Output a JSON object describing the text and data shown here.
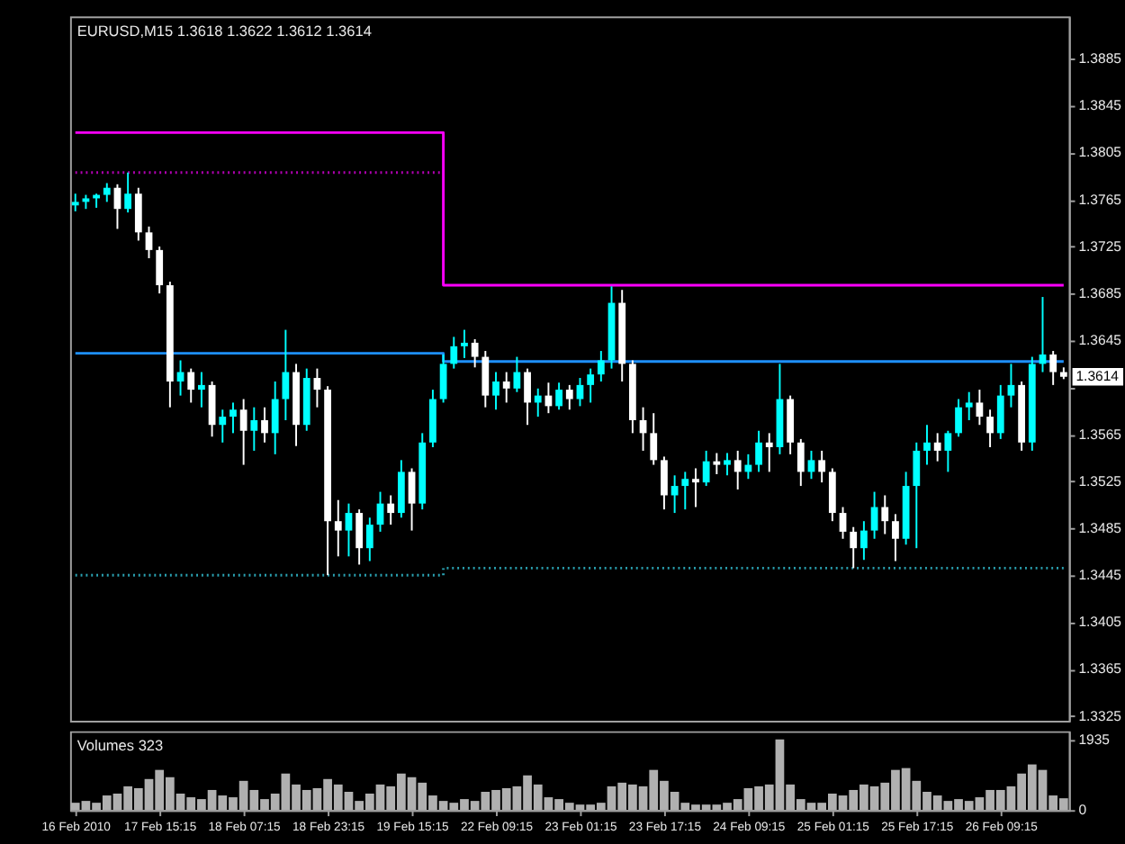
{
  "chart_data": [
    {
      "type": "candlestick",
      "title": "EURUSD,M15 1.3618 1.3622 1.3612 1.3614",
      "categories": [
        null,
        null,
        null,
        null,
        null,
        null,
        null,
        null,
        null,
        null,
        null,
        null,
        null,
        null,
        null,
        null,
        null,
        null,
        null,
        null,
        null,
        null,
        null,
        null,
        null,
        null,
        null,
        null,
        null,
        null,
        null,
        null,
        null,
        null,
        null,
        null,
        null,
        null,
        null,
        null,
        null,
        null,
        null,
        null,
        null,
        null,
        null,
        null,
        null,
        null,
        null,
        null,
        null,
        null,
        null,
        null,
        null,
        null,
        null,
        null,
        null,
        null,
        null,
        null,
        null,
        null,
        null,
        null,
        null,
        null,
        null,
        null,
        null,
        null,
        null,
        null,
        null,
        null,
        null,
        null,
        null,
        null,
        null,
        null,
        null,
        null,
        null,
        null,
        null,
        null,
        null,
        null,
        null,
        null,
        null
      ],
      "ohlc": [
        [
          1.376,
          1.377,
          1.3755,
          1.3763
        ],
        [
          1.3763,
          1.3769,
          1.3757,
          1.3766
        ],
        [
          1.3766,
          1.377,
          1.3758,
          1.3769
        ],
        [
          1.3769,
          1.3779,
          1.3763,
          1.3775
        ],
        [
          1.3775,
          1.3778,
          1.374,
          1.3757
        ],
        [
          1.3757,
          1.3788,
          1.3754,
          1.377
        ],
        [
          1.377,
          1.3775,
          1.373,
          1.3737
        ],
        [
          1.3737,
          1.3742,
          1.3715,
          1.3722
        ],
        [
          1.3722,
          1.3725,
          1.3685,
          1.3692
        ],
        [
          1.3692,
          1.3695,
          1.3588,
          1.361
        ],
        [
          1.361,
          1.3628,
          1.3598,
          1.3618
        ],
        [
          1.3618,
          1.3621,
          1.3592,
          1.3603
        ],
        [
          1.3603,
          1.3618,
          1.3588,
          1.3607
        ],
        [
          1.3607,
          1.361,
          1.3563,
          1.3573
        ],
        [
          1.3573,
          1.3586,
          1.3558,
          1.358
        ],
        [
          1.358,
          1.3592,
          1.3566,
          1.3586
        ],
        [
          1.3586,
          1.3595,
          1.3539,
          1.3568
        ],
        [
          1.3568,
          1.3588,
          1.3551,
          1.3577
        ],
        [
          1.3577,
          1.3588,
          1.3558,
          1.3566
        ],
        [
          1.3566,
          1.361,
          1.3548,
          1.3595
        ],
        [
          1.3595,
          1.3654,
          1.3577,
          1.3618
        ],
        [
          1.3618,
          1.3625,
          1.3555,
          1.3573
        ],
        [
          1.3573,
          1.3621,
          1.3568,
          1.3613
        ],
        [
          1.3613,
          1.3621,
          1.3588,
          1.3603
        ],
        [
          1.3603,
          1.3606,
          1.3445,
          1.3491
        ],
        [
          1.3491,
          1.3509,
          1.3461,
          1.3483
        ],
        [
          1.3483,
          1.3506,
          1.3461,
          1.3498
        ],
        [
          1.3498,
          1.3501,
          1.3454,
          1.3468
        ],
        [
          1.3468,
          1.3494,
          1.3457,
          1.3488
        ],
        [
          1.3488,
          1.3516,
          1.3482,
          1.3506
        ],
        [
          1.3506,
          1.3513,
          1.3488,
          1.3498
        ],
        [
          1.3498,
          1.3543,
          1.3494,
          1.3533
        ],
        [
          1.3533,
          1.3536,
          1.3483,
          1.3506
        ],
        [
          1.3506,
          1.3566,
          1.3501,
          1.3558
        ],
        [
          1.3558,
          1.3603,
          1.3554,
          1.3595
        ],
        [
          1.3595,
          1.3633,
          1.3592,
          1.3625
        ],
        [
          1.3625,
          1.3648,
          1.3621,
          1.364
        ],
        [
          1.364,
          1.3654,
          1.363,
          1.3643
        ],
        [
          1.3643,
          1.3646,
          1.3622,
          1.3631
        ],
        [
          1.3631,
          1.3636,
          1.3588,
          1.3598
        ],
        [
          1.3598,
          1.3618,
          1.3586,
          1.361
        ],
        [
          1.361,
          1.3618,
          1.3592,
          1.3604
        ],
        [
          1.3604,
          1.3631,
          1.3601,
          1.3618
        ],
        [
          1.3618,
          1.3621,
          1.3573,
          1.3592
        ],
        [
          1.3592,
          1.3604,
          1.358,
          1.3598
        ],
        [
          1.3598,
          1.3609,
          1.3583,
          1.3589
        ],
        [
          1.3589,
          1.3609,
          1.3586,
          1.3603
        ],
        [
          1.3603,
          1.3607,
          1.3586,
          1.3595
        ],
        [
          1.3595,
          1.3613,
          1.3589,
          1.3607
        ],
        [
          1.3607,
          1.3621,
          1.3592,
          1.3616
        ],
        [
          1.3616,
          1.3636,
          1.361,
          1.3628
        ],
        [
          1.3628,
          1.3691,
          1.3621,
          1.3677
        ],
        [
          1.3677,
          1.3688,
          1.361,
          1.3625
        ],
        [
          1.3625,
          1.3628,
          1.3566,
          1.3577
        ],
        [
          1.3577,
          1.3588,
          1.3551,
          1.3566
        ],
        [
          1.3566,
          1.3583,
          1.3539,
          1.3543
        ],
        [
          1.3543,
          1.3546,
          1.3501,
          1.3513
        ],
        [
          1.3513,
          1.353,
          1.3498,
          1.3521
        ],
        [
          1.3521,
          1.3533,
          1.3501,
          1.3527
        ],
        [
          1.3527,
          1.3536,
          1.3503,
          1.3524
        ],
        [
          1.3524,
          1.3551,
          1.3521,
          1.3542
        ],
        [
          1.3542,
          1.3549,
          1.3531,
          1.3539
        ],
        [
          1.3539,
          1.3549,
          1.353,
          1.3543
        ],
        [
          1.3543,
          1.3551,
          1.3518,
          1.3533
        ],
        [
          1.3533,
          1.3548,
          1.3527,
          1.3539
        ],
        [
          1.3539,
          1.3568,
          1.3533,
          1.3558
        ],
        [
          1.3558,
          1.3566,
          1.3533,
          1.3554
        ],
        [
          1.3554,
          1.3625,
          1.3548,
          1.3595
        ],
        [
          1.3595,
          1.3598,
          1.3548,
          1.3558
        ],
        [
          1.3558,
          1.3561,
          1.3521,
          1.3533
        ],
        [
          1.3533,
          1.3551,
          1.3527,
          1.3543
        ],
        [
          1.3543,
          1.3551,
          1.3524,
          1.3533
        ],
        [
          1.3533,
          1.3536,
          1.3491,
          1.3498
        ],
        [
          1.3498,
          1.3503,
          1.3476,
          1.3482
        ],
        [
          1.3482,
          1.3486,
          1.3451,
          1.3468
        ],
        [
          1.3468,
          1.3491,
          1.3458,
          1.3483
        ],
        [
          1.3483,
          1.3516,
          1.3476,
          1.3503
        ],
        [
          1.3503,
          1.3513,
          1.348,
          1.3491
        ],
        [
          1.3491,
          1.3497,
          1.3457,
          1.3476
        ],
        [
          1.3476,
          1.3533,
          1.3471,
          1.3521
        ],
        [
          1.3521,
          1.3558,
          1.3468,
          1.3551
        ],
        [
          1.3551,
          1.3573,
          1.3539,
          1.3558
        ],
        [
          1.3558,
          1.3566,
          1.3542,
          1.3551
        ],
        [
          1.3551,
          1.3568,
          1.3533,
          1.3566
        ],
        [
          1.3566,
          1.3595,
          1.3563,
          1.3588
        ],
        [
          1.3588,
          1.3601,
          1.3577,
          1.3592
        ],
        [
          1.3592,
          1.3603,
          1.3573,
          1.358
        ],
        [
          1.358,
          1.3586,
          1.3554,
          1.3566
        ],
        [
          1.3566,
          1.3607,
          1.3561,
          1.3598
        ],
        [
          1.3598,
          1.3625,
          1.3588,
          1.3607
        ],
        [
          1.3607,
          1.361,
          1.3551,
          1.3558
        ],
        [
          1.3558,
          1.3631,
          1.3551,
          1.3625
        ],
        [
          1.3625,
          1.3682,
          1.3618,
          1.3633
        ],
        [
          1.3633,
          1.3636,
          1.3607,
          1.3618
        ],
        [
          1.3618,
          1.3622,
          1.3612,
          1.3614
        ]
      ],
      "colors": [
        "#00ffff",
        "#00ffff",
        "#00ffff",
        "#00ffff",
        "#ffffff",
        "#00ffff",
        "#ffffff",
        "#ffffff",
        "#ffffff",
        "#ffffff",
        "#00ffff",
        "#ffffff",
        "#00ffff",
        "#ffffff",
        "#00ffff",
        "#00ffff",
        "#ffffff",
        "#00ffff",
        "#ffffff",
        "#00ffff",
        "#00ffff",
        "#ffffff",
        "#00ffff",
        "#ffffff",
        "#ffffff",
        "#ffffff",
        "#00ffff",
        "#ffffff",
        "#00ffff",
        "#00ffff",
        "#ffffff",
        "#00ffff",
        "#ffffff",
        "#00ffff",
        "#00ffff",
        "#00ffff",
        "#00ffff",
        "#00ffff",
        "#ffffff",
        "#ffffff",
        "#00ffff",
        "#ffffff",
        "#00ffff",
        "#ffffff",
        "#00ffff",
        "#ffffff",
        "#00ffff",
        "#ffffff",
        "#00ffff",
        "#00ffff",
        "#00ffff",
        "#00ffff",
        "#ffffff",
        "#ffffff",
        "#ffffff",
        "#ffffff",
        "#ffffff",
        "#00ffff",
        "#00ffff",
        "#ffffff",
        "#00ffff",
        "#ffffff",
        "#00ffff",
        "#ffffff",
        "#00ffff",
        "#00ffff",
        "#ffffff",
        "#00ffff",
        "#ffffff",
        "#ffffff",
        "#00ffff",
        "#ffffff",
        "#ffffff",
        "#ffffff",
        "#ffffff",
        "#00ffff",
        "#00ffff",
        "#ffffff",
        "#ffffff",
        "#00ffff",
        "#00ffff",
        "#00ffff",
        "#ffffff",
        "#00ffff",
        "#00ffff",
        "#00ffff",
        "#ffffff",
        "#ffffff",
        "#00ffff",
        "#00ffff",
        "#ffffff",
        "#00ffff",
        "#00ffff",
        "#ffffff",
        "#ffffff"
      ],
      "series": [
        {
          "type": "step",
          "color": "#ff00ff",
          "values": [
            1.3822,
            1.3822,
            1.3822,
            1.3822,
            1.3822,
            1.3822,
            1.3822,
            1.3822,
            1.3822,
            1.3822,
            1.3822,
            1.3822,
            1.3822,
            1.3822,
            1.3822,
            1.3822,
            1.3822,
            1.3822,
            1.3822,
            1.3822,
            1.3822,
            1.3822,
            1.3822,
            1.3822,
            1.3822,
            1.3822,
            1.3822,
            1.3822,
            1.3822,
            1.3822,
            1.3822,
            1.3822,
            1.3822,
            1.3822,
            1.3822,
            1.3692,
            1.3692,
            1.3692,
            1.3692,
            1.3692,
            1.3692,
            1.3692,
            1.3692,
            1.3692,
            1.3692,
            1.3692,
            1.3692,
            1.3692,
            1.3692,
            1.3692,
            1.3692,
            1.3692,
            1.3692,
            1.3692,
            1.3692,
            1.3692,
            1.3692,
            1.3692,
            1.3692,
            1.3692,
            1.3692,
            1.3692,
            1.3692,
            1.3692,
            1.3692,
            1.3692,
            1.3692,
            1.3692,
            1.3692,
            1.3692,
            1.3692,
            1.3692,
            1.3692,
            1.3692,
            1.3692,
            1.3692,
            1.3692,
            1.3692,
            1.3692,
            1.3692,
            1.3692,
            1.3692,
            1.3692,
            1.3692,
            1.3692,
            1.3692,
            1.3692,
            1.3692,
            1.3692,
            1.3692,
            1.3692,
            1.3692,
            1.3692,
            1.3692,
            1.3692
          ]
        },
        {
          "type": "step",
          "color": "#1e90ff",
          "values": [
            1.3634,
            1.3634,
            1.3634,
            1.3634,
            1.3634,
            1.3634,
            1.3634,
            1.3634,
            1.3634,
            1.3634,
            1.3634,
            1.3634,
            1.3634,
            1.3634,
            1.3634,
            1.3634,
            1.3634,
            1.3634,
            1.3634,
            1.3634,
            1.3634,
            1.3634,
            1.3634,
            1.3634,
            1.3634,
            1.3634,
            1.3634,
            1.3634,
            1.3634,
            1.3634,
            1.3634,
            1.3634,
            1.3634,
            1.3634,
            1.3634,
            1.3627,
            1.3627,
            1.3627,
            1.3627,
            1.3627,
            1.3627,
            1.3627,
            1.3627,
            1.3627,
            1.3627,
            1.3627,
            1.3627,
            1.3627,
            1.3627,
            1.3627,
            1.3627,
            1.3627,
            1.3627,
            1.3627,
            1.3627,
            1.3627,
            1.3627,
            1.3627,
            1.3627,
            1.3627,
            1.3627,
            1.3627,
            1.3627,
            1.3627,
            1.3627,
            1.3627,
            1.3627,
            1.3627,
            1.3627,
            1.3627,
            1.3627,
            1.3627,
            1.3627,
            1.3627,
            1.3627,
            1.3627,
            1.3627,
            1.3627,
            1.3627,
            1.3627,
            1.3627,
            1.3627,
            1.3627,
            1.3627,
            1.3627,
            1.3627,
            1.3627,
            1.3627,
            1.3627,
            1.3627,
            1.3627,
            1.3627,
            1.3627,
            1.3627,
            1.3627
          ]
        },
        {
          "type": "line",
          "color": "#b000b0",
          "line_style": "dotted",
          "values": [
            1.3788,
            1.3788,
            1.3788,
            1.3788,
            1.3788,
            1.3788,
            1.3788,
            1.3788,
            1.3788,
            1.3788,
            1.3788,
            1.3788,
            1.3788,
            1.3788,
            1.3788,
            1.3788,
            1.3788,
            1.3788,
            1.3788,
            1.3788,
            1.3788,
            1.3788,
            1.3788,
            1.3788,
            1.3788,
            1.3788,
            1.3788,
            1.3788,
            1.3788,
            1.3788,
            1.3788,
            1.3788,
            1.3788,
            1.3788,
            1.3788,
            1.3788,
            null,
            null,
            null,
            null,
            null,
            null,
            null,
            null,
            null,
            null,
            null,
            null,
            null,
            null,
            null,
            null,
            null,
            null,
            null,
            null,
            null,
            null,
            null,
            null,
            null,
            null,
            null,
            null,
            null,
            null,
            null,
            null,
            null,
            null,
            null,
            null,
            null,
            null,
            null,
            null,
            null,
            null,
            null,
            null,
            null,
            null,
            null,
            null,
            null,
            null,
            null,
            null,
            null,
            null,
            null,
            null,
            null,
            null,
            null
          ]
        },
        {
          "type": "step",
          "color": "#2aa0b0",
          "line_style": "dotted",
          "values": [
            1.3445,
            1.3445,
            1.3445,
            1.3445,
            1.3445,
            1.3445,
            1.3445,
            1.3445,
            1.3445,
            1.3445,
            1.3445,
            1.3445,
            1.3445,
            1.3445,
            1.3445,
            1.3445,
            1.3445,
            1.3445,
            1.3445,
            1.3445,
            1.3445,
            1.3445,
            1.3445,
            1.3445,
            1.3445,
            1.3445,
            1.3445,
            1.3445,
            1.3445,
            1.3445,
            1.3445,
            1.3445,
            1.3445,
            1.3445,
            1.3445,
            1.3451,
            1.3451,
            1.3451,
            1.3451,
            1.3451,
            1.3451,
            1.3451,
            1.3451,
            1.3451,
            1.3451,
            1.3451,
            1.3451,
            1.3451,
            1.3451,
            1.3451,
            1.3451,
            1.3451,
            1.3451,
            1.3451,
            1.3451,
            1.3451,
            1.3451,
            1.3451,
            1.3451,
            1.3451,
            1.3451,
            1.3451,
            1.3451,
            1.3451,
            1.3451,
            1.3451,
            1.3451,
            1.3451,
            1.3451,
            1.3451,
            1.3451,
            1.3451,
            1.3451,
            1.3451,
            1.3451,
            1.3451,
            1.3451,
            1.3451,
            1.3451,
            1.3451,
            1.3451,
            1.3451,
            1.3451,
            1.3451,
            1.3451,
            1.3451,
            1.3451,
            1.3451,
            1.3451,
            1.3451,
            1.3451,
            1.3451,
            1.3451,
            1.3451,
            1.3451
          ]
        }
      ],
      "ylim": [
        1.3321,
        1.3921
      ],
      "yticks": [
        1.3325,
        1.3365,
        1.3405,
        1.3445,
        1.3485,
        1.3525,
        1.3565,
        {
          "value": 1.3605,
          "label": null
        },
        1.3645,
        1.3685,
        1.3725,
        1.3765,
        1.3805,
        1.3845,
        1.3885
      ],
      "annotations": [
        "1.3614"
      ]
    },
    {
      "type": "bar",
      "title": "Volumes 323",
      "color": "#b0b0b0",
      "categories": [
        "16 Feb 2010",
        null,
        null,
        null,
        null,
        null,
        null,
        null,
        "17 Feb 15:15",
        null,
        null,
        null,
        null,
        null,
        null,
        null,
        "18 Feb 07:15",
        null,
        null,
        null,
        null,
        null,
        null,
        null,
        "18 Feb 23:15",
        null,
        null,
        null,
        null,
        null,
        null,
        null,
        "19 Feb 15:15",
        null,
        null,
        null,
        null,
        null,
        null,
        null,
        "22 Feb 09:15",
        null,
        null,
        null,
        null,
        null,
        null,
        null,
        "23 Feb 01:15",
        null,
        null,
        null,
        null,
        null,
        null,
        null,
        "23 Feb 17:15",
        null,
        null,
        null,
        null,
        null,
        null,
        null,
        "24 Feb 09:15",
        null,
        null,
        null,
        null,
        null,
        null,
        null,
        "25 Feb 01:15",
        null,
        null,
        null,
        null,
        null,
        null,
        null,
        "25 Feb 17:15",
        null,
        null,
        null,
        null,
        null,
        null,
        null,
        "26 Feb 09:15",
        null,
        null,
        null,
        null,
        null,
        null
      ],
      "values": [
        200,
        250,
        200,
        400,
        450,
        650,
        600,
        850,
        1100,
        900,
        450,
        350,
        300,
        550,
        400,
        350,
        800,
        550,
        300,
        450,
        1000,
        700,
        550,
        600,
        850,
        700,
        500,
        250,
        450,
        700,
        650,
        1000,
        900,
        750,
        400,
        250,
        200,
        300,
        250,
        500,
        550,
        600,
        650,
        950,
        700,
        350,
        300,
        200,
        150,
        150,
        200,
        650,
        750,
        700,
        650,
        1100,
        800,
        500,
        200,
        150,
        150,
        150,
        200,
        300,
        600,
        650,
        700,
        1935,
        700,
        300,
        200,
        200,
        450,
        400,
        550,
        700,
        650,
        750,
        1100,
        1150,
        800,
        500,
        400,
        250,
        300,
        250,
        350,
        550,
        550,
        650,
        1000,
        1250,
        1100,
        400,
        323
      ],
      "ylim": [
        0,
        2160
      ],
      "yticks": [
        0,
        1935
      ]
    }
  ]
}
